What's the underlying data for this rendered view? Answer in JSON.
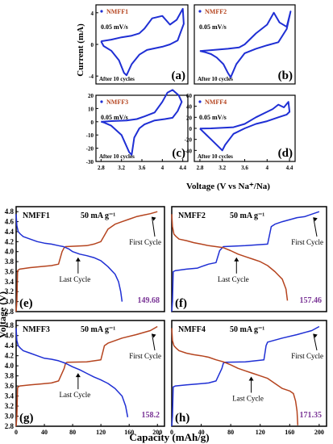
{
  "figure": {
    "cv_y_label": "Current (mA)",
    "cv_x_label": "Voltage (V vs Na⁺/Na)",
    "gcd_y_label": "Voltage (V)",
    "gcd_x_label": "Capacity (mAh/g)"
  },
  "colors": {
    "blue": "#1f2fd4",
    "red": "#b5441f",
    "purple": "#7a3596",
    "axis": "#000000"
  },
  "chart_data": [
    {
      "type": "line",
      "panel": "(a)",
      "legend": "NMFF1",
      "rate": "0.05 mV/s",
      "note": "After 10 cycles",
      "xlim": [
        2.7,
        4.5
      ],
      "ylim": [
        -5,
        5
      ],
      "yticks": [
        -4,
        0,
        4
      ],
      "xticks": [],
      "series": [
        {
          "name": "NMFF1",
          "color": "#1f2fd4",
          "x": [
            2.8,
            3.0,
            3.2,
            3.4,
            3.55,
            3.65,
            3.8,
            4.0,
            4.15,
            4.28,
            4.4,
            4.42,
            4.3,
            4.15,
            4.0,
            3.85,
            3.7,
            3.55,
            3.4,
            3.3,
            3.25,
            3.15,
            3.0,
            2.85,
            2.8
          ],
          "y": [
            0.4,
            0.6,
            0.9,
            1.1,
            1.4,
            2.0,
            3.3,
            3.6,
            2.5,
            3.1,
            4.5,
            2.6,
            0.5,
            0.0,
            -0.3,
            -0.5,
            -0.7,
            -1.3,
            -2.5,
            -3.9,
            -3.6,
            -2.0,
            -0.8,
            -0.2,
            0.4
          ]
        }
      ]
    },
    {
      "type": "line",
      "panel": "(b)",
      "legend": "NMFF2",
      "rate": "0.05 mV/s",
      "note": "After 10 cycles",
      "xlim": [
        2.7,
        4.5
      ],
      "ylim": [
        -8,
        10
      ],
      "yticks": [],
      "xticks": [],
      "series": [
        {
          "name": "NMFF2",
          "color": "#1f2fd4",
          "x": [
            2.8,
            3.0,
            3.3,
            3.5,
            3.6,
            3.8,
            4.0,
            4.12,
            4.22,
            4.35,
            4.42,
            4.35,
            4.2,
            4.0,
            3.8,
            3.6,
            3.45,
            3.35,
            3.3,
            3.22,
            3.1,
            3.0,
            2.9,
            2.8
          ],
          "y": [
            -0.5,
            -0.3,
            0.0,
            0.3,
            1.0,
            3.5,
            5.5,
            8.2,
            6.0,
            5.0,
            8.5,
            4.5,
            1.5,
            0.8,
            0.0,
            -1.0,
            -3.5,
            -6.5,
            -5.5,
            -3.5,
            -2.0,
            -1.2,
            -0.8,
            -0.5
          ]
        }
      ]
    },
    {
      "type": "line",
      "panel": "(c)",
      "legend": "NMFF3",
      "rate": "0.05 mV/s",
      "note": "After 10 cycles",
      "xlim": [
        2.7,
        4.5
      ],
      "ylim": [
        -30,
        20
      ],
      "yticks": [
        -30,
        -20,
        -10,
        0,
        10,
        20
      ],
      "xticks": [
        2.8,
        3.2,
        3.6,
        4.0,
        4.4
      ],
      "series": [
        {
          "name": "NMFF3",
          "color": "#1f2fd4",
          "x": [
            2.8,
            3.0,
            3.3,
            3.5,
            3.65,
            3.85,
            4.0,
            4.1,
            4.2,
            4.32,
            4.38,
            4.3,
            4.2,
            4.05,
            3.85,
            3.65,
            3.55,
            3.45,
            3.4,
            3.35,
            3.2,
            3.0,
            2.85,
            2.8
          ],
          "y": [
            0.0,
            0.5,
            1.0,
            2.0,
            4.0,
            7.0,
            15.0,
            22.0,
            24.0,
            20.0,
            15.0,
            8.0,
            3.0,
            2.0,
            1.0,
            -2.0,
            -5.0,
            -12.0,
            -25.0,
            -23.0,
            -10.0,
            -3.0,
            -0.5,
            0.0
          ]
        }
      ]
    },
    {
      "type": "line",
      "panel": "(d)",
      "legend": "NMFF4",
      "rate": "0.05 mV/s",
      "note": "After 10 cycles",
      "xlim": [
        2.7,
        4.5
      ],
      "ylim": [
        -60,
        60
      ],
      "yticks": [
        -40,
        -20,
        0,
        20,
        40,
        60
      ],
      "xticks": [
        2.8,
        3.2,
        3.6,
        4.0,
        4.4
      ],
      "series": [
        {
          "name": "NMFF4",
          "color": "#1f2fd4",
          "x": [
            2.8,
            3.0,
            3.4,
            3.6,
            3.8,
            4.0,
            4.1,
            4.2,
            4.3,
            4.38,
            4.4,
            4.35,
            4.2,
            4.0,
            3.8,
            3.6,
            3.4,
            3.25,
            3.2,
            3.15,
            3.0,
            2.8
          ],
          "y": [
            -0.5,
            0.0,
            2.0,
            8.0,
            20.0,
            30.0,
            35.0,
            43.0,
            38.0,
            48.0,
            30.0,
            25.0,
            20.0,
            13.0,
            8.0,
            0.0,
            -10.0,
            -30.0,
            -40.0,
            -35.0,
            -20.0,
            -0.5
          ]
        }
      ]
    },
    {
      "type": "line",
      "panel": "(e)",
      "label": "NMFF1",
      "rate": "50 mA g⁻¹",
      "capacity_label": "149.68",
      "annotations": [
        "First Cycle",
        "Last Cycle"
      ],
      "xlim": [
        0,
        210
      ],
      "ylim": [
        2.8,
        4.9
      ],
      "yticks": [
        2.8,
        3.0,
        3.2,
        3.4,
        3.6,
        3.8,
        4.0,
        4.2,
        4.4,
        4.6,
        4.8
      ],
      "xticks": [],
      "series": [
        {
          "name": "First Cycle",
          "color": "#b5441f",
          "x": [
            0,
            1,
            2,
            5,
            20,
            35,
            50,
            60,
            65,
            68,
            70,
            100,
            110,
            120,
            130,
            140,
            150,
            160,
            170,
            180,
            190,
            200
          ],
          "y": [
            2.8,
            3.0,
            3.62,
            3.65,
            3.68,
            3.7,
            3.72,
            3.75,
            4.0,
            4.08,
            4.1,
            4.12,
            4.15,
            4.2,
            4.45,
            4.55,
            4.6,
            4.65,
            4.7,
            4.73,
            4.76,
            4.8
          ]
        },
        {
          "name": "Last Cycle",
          "color": "#1f2fd4",
          "x": [
            0,
            1,
            3,
            6,
            10,
            20,
            30,
            40,
            50,
            60,
            67,
            75,
            80,
            90,
            100,
            110,
            120,
            130,
            140,
            145,
            148,
            150
          ],
          "y": [
            4.75,
            4.52,
            4.4,
            4.35,
            4.3,
            4.25,
            4.2,
            4.17,
            4.15,
            4.12,
            4.1,
            4.05,
            4.0,
            3.95,
            3.92,
            3.88,
            3.82,
            3.7,
            3.55,
            3.4,
            3.2,
            3.0
          ]
        }
      ]
    },
    {
      "type": "line",
      "panel": "(f)",
      "label": "NMFF2",
      "rate": "50 mA g⁻¹",
      "capacity_label": "157.46",
      "annotations": [
        "First Cycle",
        "Last Cycle"
      ],
      "xlim": [
        0,
        210
      ],
      "ylim": [
        2.8,
        4.9
      ],
      "yticks": [],
      "xticks": [],
      "series": [
        {
          "name": "First Cycle",
          "color": "#1f2fd4",
          "x": [
            0,
            1,
            2,
            5,
            20,
            35,
            40,
            50,
            60,
            65,
            70,
            100,
            130,
            135,
            140,
            150,
            160,
            170,
            180,
            190,
            200
          ],
          "y": [
            2.8,
            3.0,
            3.6,
            3.62,
            3.65,
            3.67,
            3.7,
            3.75,
            3.78,
            4.02,
            4.1,
            4.12,
            4.15,
            4.5,
            4.55,
            4.6,
            4.64,
            4.68,
            4.7,
            4.75,
            4.8
          ]
        },
        {
          "name": "Last Cycle",
          "color": "#b5441f",
          "x": [
            0,
            1,
            3,
            6,
            10,
            20,
            30,
            40,
            50,
            60,
            70,
            80,
            90,
            100,
            110,
            120,
            130,
            140,
            150,
            155,
            157
          ],
          "y": [
            4.75,
            4.5,
            4.35,
            4.3,
            4.25,
            4.22,
            4.18,
            4.15,
            4.12,
            4.1,
            4.08,
            4.02,
            3.95,
            3.9,
            3.85,
            3.8,
            3.72,
            3.6,
            3.45,
            3.25,
            3.02
          ]
        }
      ]
    },
    {
      "type": "line",
      "panel": "(g)",
      "label": "NMFF3",
      "rate": "50 mA g⁻¹",
      "capacity_label": "158.2",
      "annotations": [
        "First Cycle",
        "Last Cycle"
      ],
      "xlim": [
        0,
        210
      ],
      "ylim": [
        2.8,
        4.9
      ],
      "yticks": [
        2.8,
        3.0,
        3.2,
        3.4,
        3.6,
        3.8,
        4.0,
        4.2,
        4.4,
        4.6,
        4.8
      ],
      "xticks": [
        0,
        40,
        80,
        120,
        160,
        200
      ],
      "series": [
        {
          "name": "First Cycle",
          "color": "#b5441f",
          "x": [
            0,
            1,
            2,
            5,
            20,
            35,
            50,
            60,
            68,
            70,
            72,
            100,
            120,
            125,
            130,
            150,
            170,
            190,
            200
          ],
          "y": [
            2.8,
            3.0,
            3.57,
            3.6,
            3.62,
            3.64,
            3.66,
            3.7,
            3.95,
            4.05,
            4.07,
            4.08,
            4.12,
            4.4,
            4.45,
            4.55,
            4.62,
            4.7,
            4.78
          ]
        },
        {
          "name": "Last Cycle",
          "color": "#1f2fd4",
          "x": [
            0,
            1,
            3,
            6,
            10,
            20,
            30,
            40,
            50,
            60,
            70,
            80,
            90,
            100,
            110,
            120,
            130,
            140,
            150,
            155,
            158
          ],
          "y": [
            4.75,
            4.5,
            4.4,
            4.35,
            4.3,
            4.25,
            4.2,
            4.15,
            4.13,
            4.1,
            4.05,
            3.98,
            3.92,
            3.85,
            3.78,
            3.72,
            3.65,
            3.55,
            3.4,
            3.2,
            2.98
          ]
        }
      ]
    },
    {
      "type": "line",
      "panel": "(h)",
      "label": "NMFF4",
      "rate": "50 mA g⁻¹",
      "capacity_label": "171.35",
      "annotations": [
        "First Cycle",
        "Last Cycle"
      ],
      "xlim": [
        0,
        210
      ],
      "ylim": [
        2.8,
        4.9
      ],
      "yticks": [],
      "xticks": [
        0,
        40,
        80,
        120,
        160,
        200
      ],
      "series": [
        {
          "name": "First Cycle",
          "color": "#1f2fd4",
          "x": [
            0,
            1,
            2,
            5,
            20,
            35,
            50,
            60,
            68,
            70,
            72,
            100,
            125,
            128,
            130,
            150,
            170,
            190,
            200
          ],
          "y": [
            2.8,
            3.0,
            3.58,
            3.6,
            3.62,
            3.64,
            3.66,
            3.7,
            3.95,
            4.05,
            4.07,
            4.08,
            4.12,
            4.4,
            4.47,
            4.55,
            4.62,
            4.7,
            4.78
          ]
        },
        {
          "name": "Last Cycle",
          "color": "#b5441f",
          "x": [
            0,
            1,
            3,
            6,
            10,
            20,
            30,
            40,
            50,
            60,
            70,
            80,
            90,
            100,
            110,
            120,
            130,
            140,
            150,
            160,
            165,
            168,
            170,
            171
          ],
          "y": [
            4.75,
            4.5,
            4.4,
            4.35,
            4.3,
            4.25,
            4.22,
            4.2,
            4.17,
            4.12,
            4.08,
            4.02,
            3.95,
            3.9,
            3.85,
            3.8,
            3.75,
            3.65,
            3.55,
            3.5,
            3.45,
            3.3,
            3.1,
            2.82
          ]
        }
      ]
    }
  ]
}
